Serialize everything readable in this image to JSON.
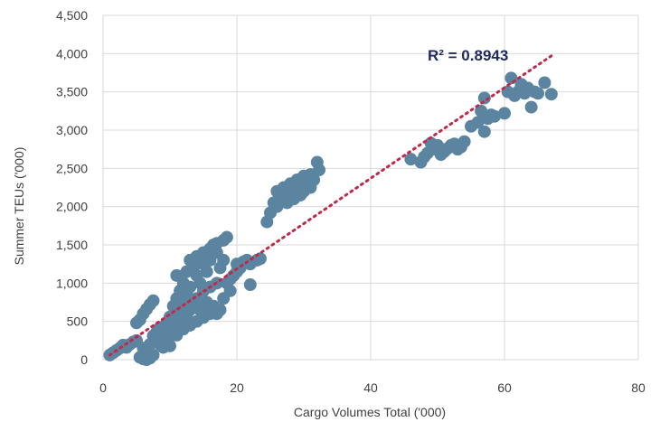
{
  "chart_data": {
    "type": "scatter",
    "xlabel": "Cargo Volumes Total ('000)",
    "ylabel": "Summer TEUs ('000)",
    "xlim": [
      0,
      80
    ],
    "ylim": [
      0,
      4500
    ],
    "x_ticks": [
      "0",
      "20",
      "40",
      "60",
      "80"
    ],
    "y_ticks": [
      "0",
      "500",
      "1,000",
      "1,500",
      "2,000",
      "2,500",
      "3,000",
      "3,500",
      "4,000",
      "4,500"
    ],
    "grid": true,
    "annotation": "R² = 0.8943",
    "trendline": {
      "style": "dotted",
      "color": "#c0294a",
      "x": [
        1,
        67
      ],
      "y": [
        60,
        3970
      ]
    },
    "marker_color": "#5a84a0",
    "points": [
      [
        1,
        60
      ],
      [
        1.5,
        90
      ],
      [
        2,
        120
      ],
      [
        2.5,
        150
      ],
      [
        3,
        190
      ],
      [
        3.5,
        160
      ],
      [
        4,
        200
      ],
      [
        4.5,
        230
      ],
      [
        5,
        250
      ],
      [
        5,
        480
      ],
      [
        5.5,
        520
      ],
      [
        6,
        600
      ],
      [
        6.5,
        660
      ],
      [
        7,
        720
      ],
      [
        7.5,
        770
      ],
      [
        5.5,
        30
      ],
      [
        6,
        10
      ],
      [
        6.5,
        0
      ],
      [
        7,
        20
      ],
      [
        7.5,
        60
      ],
      [
        6,
        150
      ],
      [
        7,
        200
      ],
      [
        7.5,
        310
      ],
      [
        8,
        360
      ],
      [
        8,
        250
      ],
      [
        8.5,
        200
      ],
      [
        8.5,
        420
      ],
      [
        9,
        340
      ],
      [
        9,
        160
      ],
      [
        9.5,
        480
      ],
      [
        9.5,
        280
      ],
      [
        10,
        560
      ],
      [
        10,
        380
      ],
      [
        10,
        180
      ],
      [
        10.5,
        700
      ],
      [
        10.5,
        470
      ],
      [
        11,
        800
      ],
      [
        11,
        600
      ],
      [
        11,
        320
      ],
      [
        11,
        1100
      ],
      [
        11.5,
        900
      ],
      [
        11.5,
        500
      ],
      [
        12,
        700
      ],
      [
        12,
        1000
      ],
      [
        12,
        400
      ],
      [
        12.5,
        1150
      ],
      [
        12.5,
        850
      ],
      [
        12.5,
        550
      ],
      [
        13,
        1300
      ],
      [
        13,
        950
      ],
      [
        13,
        650
      ],
      [
        13,
        450
      ],
      [
        13.5,
        1200
      ],
      [
        13.5,
        750
      ],
      [
        14,
        1100
      ],
      [
        14,
        800
      ],
      [
        14,
        500
      ],
      [
        14,
        1350
      ],
      [
        14.5,
        1000
      ],
      [
        14.5,
        650
      ],
      [
        15,
        1250
      ],
      [
        15,
        900
      ],
      [
        15,
        550
      ],
      [
        15,
        1400
      ],
      [
        15.5,
        1150
      ],
      [
        15.5,
        750
      ],
      [
        16,
        1300
      ],
      [
        16,
        600
      ],
      [
        16,
        1450
      ],
      [
        16,
        950
      ],
      [
        16.5,
        1500
      ],
      [
        16.5,
        700
      ],
      [
        17,
        1400
      ],
      [
        17,
        1000
      ],
      [
        17,
        600
      ],
      [
        17,
        1520
      ],
      [
        17.5,
        1200
      ],
      [
        17.5,
        650
      ],
      [
        18,
        1560
      ],
      [
        18,
        1300
      ],
      [
        18,
        800
      ],
      [
        18.5,
        1600
      ],
      [
        18.5,
        1000
      ],
      [
        19,
        900
      ],
      [
        19,
        1050
      ],
      [
        19.5,
        1100
      ],
      [
        20,
        1150
      ],
      [
        20,
        1250
      ],
      [
        20.5,
        1200
      ],
      [
        21,
        1280
      ],
      [
        21.5,
        1300
      ],
      [
        22,
        1250
      ],
      [
        22,
        980
      ],
      [
        23,
        1300
      ],
      [
        23.5,
        1320
      ],
      [
        24.5,
        1800
      ],
      [
        25,
        1920
      ],
      [
        25.5,
        2050
      ],
      [
        26,
        2000
      ],
      [
        26,
        2200
      ],
      [
        26.5,
        2100
      ],
      [
        27,
        2150
      ],
      [
        27,
        2250
      ],
      [
        27.5,
        2050
      ],
      [
        28,
        2200
      ],
      [
        28,
        2300
      ],
      [
        28.5,
        2100
      ],
      [
        29,
        2250
      ],
      [
        29,
        2350
      ],
      [
        29.5,
        2150
      ],
      [
        30,
        2200
      ],
      [
        30,
        2400
      ],
      [
        30.5,
        2300
      ],
      [
        31,
        2250
      ],
      [
        31,
        2420
      ],
      [
        31.5,
        2350
      ],
      [
        32,
        2580
      ],
      [
        32.3,
        2480
      ],
      [
        46,
        2620
      ],
      [
        47.5,
        2580
      ],
      [
        48,
        2650
      ],
      [
        48.5,
        2700
      ],
      [
        49,
        2830
      ],
      [
        49.5,
        2750
      ],
      [
        50,
        2800
      ],
      [
        50.5,
        2680
      ],
      [
        51,
        2720
      ],
      [
        51.5,
        2760
      ],
      [
        52,
        2800
      ],
      [
        52.5,
        2820
      ],
      [
        53,
        2750
      ],
      [
        53.5,
        2780
      ],
      [
        54,
        2850
      ],
      [
        55,
        3050
      ],
      [
        56,
        3100
      ],
      [
        56.5,
        3250
      ],
      [
        57,
        3420
      ],
      [
        57,
        2980
      ],
      [
        57.5,
        3150
      ],
      [
        58,
        3200
      ],
      [
        58.5,
        3180
      ],
      [
        60,
        3220
      ],
      [
        60.5,
        3500
      ],
      [
        61,
        3680
      ],
      [
        61.5,
        3450
      ],
      [
        62,
        3500
      ],
      [
        62.5,
        3600
      ],
      [
        63,
        3480
      ],
      [
        63.5,
        3550
      ],
      [
        64,
        3300
      ],
      [
        64.5,
        3500
      ],
      [
        65,
        3480
      ],
      [
        66,
        3620
      ],
      [
        67,
        3470
      ]
    ]
  }
}
